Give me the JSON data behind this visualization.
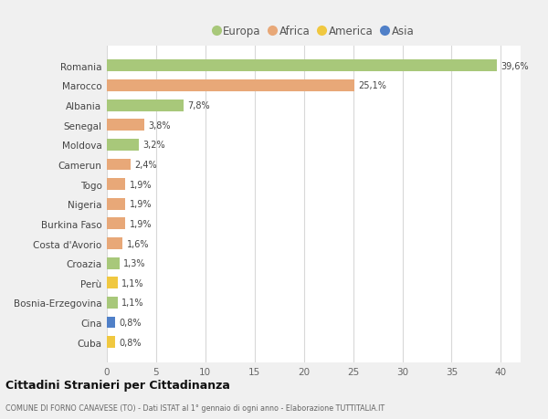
{
  "categories": [
    "Romania",
    "Marocco",
    "Albania",
    "Senegal",
    "Moldova",
    "Camerun",
    "Togo",
    "Nigeria",
    "Burkina Faso",
    "Costa d'Avorio",
    "Croazia",
    "Perù",
    "Bosnia-Erzegovina",
    "Cina",
    "Cuba"
  ],
  "values": [
    39.6,
    25.1,
    7.8,
    3.8,
    3.2,
    2.4,
    1.9,
    1.9,
    1.9,
    1.6,
    1.3,
    1.1,
    1.1,
    0.8,
    0.8
  ],
  "labels": [
    "39,6%",
    "25,1%",
    "7,8%",
    "3,8%",
    "3,2%",
    "2,4%",
    "1,9%",
    "1,9%",
    "1,9%",
    "1,6%",
    "1,3%",
    "1,1%",
    "1,1%",
    "0,8%",
    "0,8%"
  ],
  "continents": [
    "Europa",
    "Africa",
    "Europa",
    "Africa",
    "Europa",
    "Africa",
    "Africa",
    "Africa",
    "Africa",
    "Africa",
    "Europa",
    "America",
    "Europa",
    "Asia",
    "America"
  ],
  "continent_colors": {
    "Europa": "#a8c87a",
    "Africa": "#e8a878",
    "America": "#f0c840",
    "Asia": "#5080c8"
  },
  "legend_order": [
    "Europa",
    "Africa",
    "America",
    "Asia"
  ],
  "title": "Cittadini Stranieri per Cittadinanza",
  "subtitle": "COMUNE DI FORNO CANAVESE (TO) - Dati ISTAT al 1° gennaio di ogni anno - Elaborazione TUTTITALIA.IT",
  "xlim": [
    0,
    42
  ],
  "xticks": [
    0,
    5,
    10,
    15,
    20,
    25,
    30,
    35,
    40
  ],
  "background_color": "#f0f0f0",
  "plot_bg_color": "#ffffff",
  "grid_color": "#d8d8d8"
}
